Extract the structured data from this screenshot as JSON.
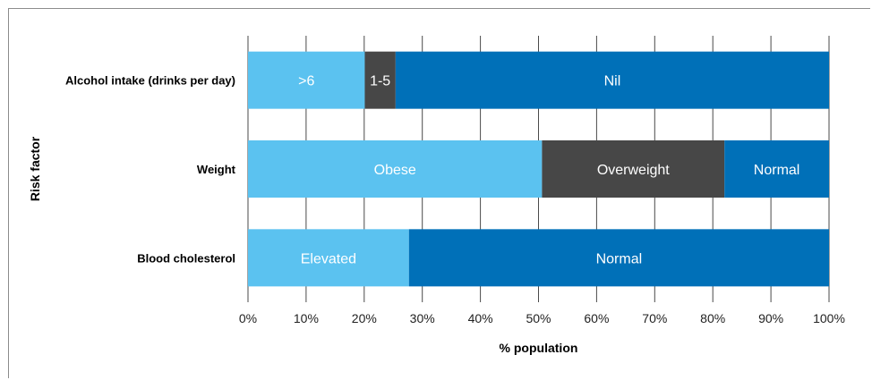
{
  "chart_data": {
    "type": "bar",
    "orientation": "horizontal",
    "stacked": true,
    "xlabel": "% population",
    "ylabel": "Risk factor",
    "xlim": [
      0,
      100
    ],
    "xticks": [
      "0%",
      "10%",
      "20%",
      "30%",
      "40%",
      "50%",
      "60%",
      "70%",
      "80%",
      "90%",
      "100%"
    ],
    "grid": "vertical",
    "colors": {
      "light_blue": "#5bc2f0",
      "dark_grey": "#474747",
      "dark_blue": "#0070b8"
    },
    "categories": [
      "Alcohol intake (drinks per day)",
      "Weight",
      "Blood cholesterol"
    ],
    "bars": [
      {
        "category": "Alcohol intake (drinks per day)",
        "segments": [
          {
            "label": ">6",
            "value": 20.1,
            "color": "#5bc2f0"
          },
          {
            "label": "1-5",
            "value": 5.3,
            "color": "#474747"
          },
          {
            "label": "Nil",
            "value": 74.6,
            "color": "#0070b8"
          }
        ]
      },
      {
        "category": "Weight",
        "segments": [
          {
            "label": "Obese",
            "value": 50.6,
            "color": "#5bc2f0"
          },
          {
            "label": "Overweight",
            "value": 31.4,
            "color": "#474747"
          },
          {
            "label": "Normal",
            "value": 18.0,
            "color": "#0070b8"
          }
        ]
      },
      {
        "category": "Blood cholesterol",
        "segments": [
          {
            "label": "Elevated",
            "value": 27.7,
            "color": "#5bc2f0"
          },
          {
            "label": "Normal",
            "value": 72.3,
            "color": "#0070b8"
          }
        ]
      }
    ]
  }
}
